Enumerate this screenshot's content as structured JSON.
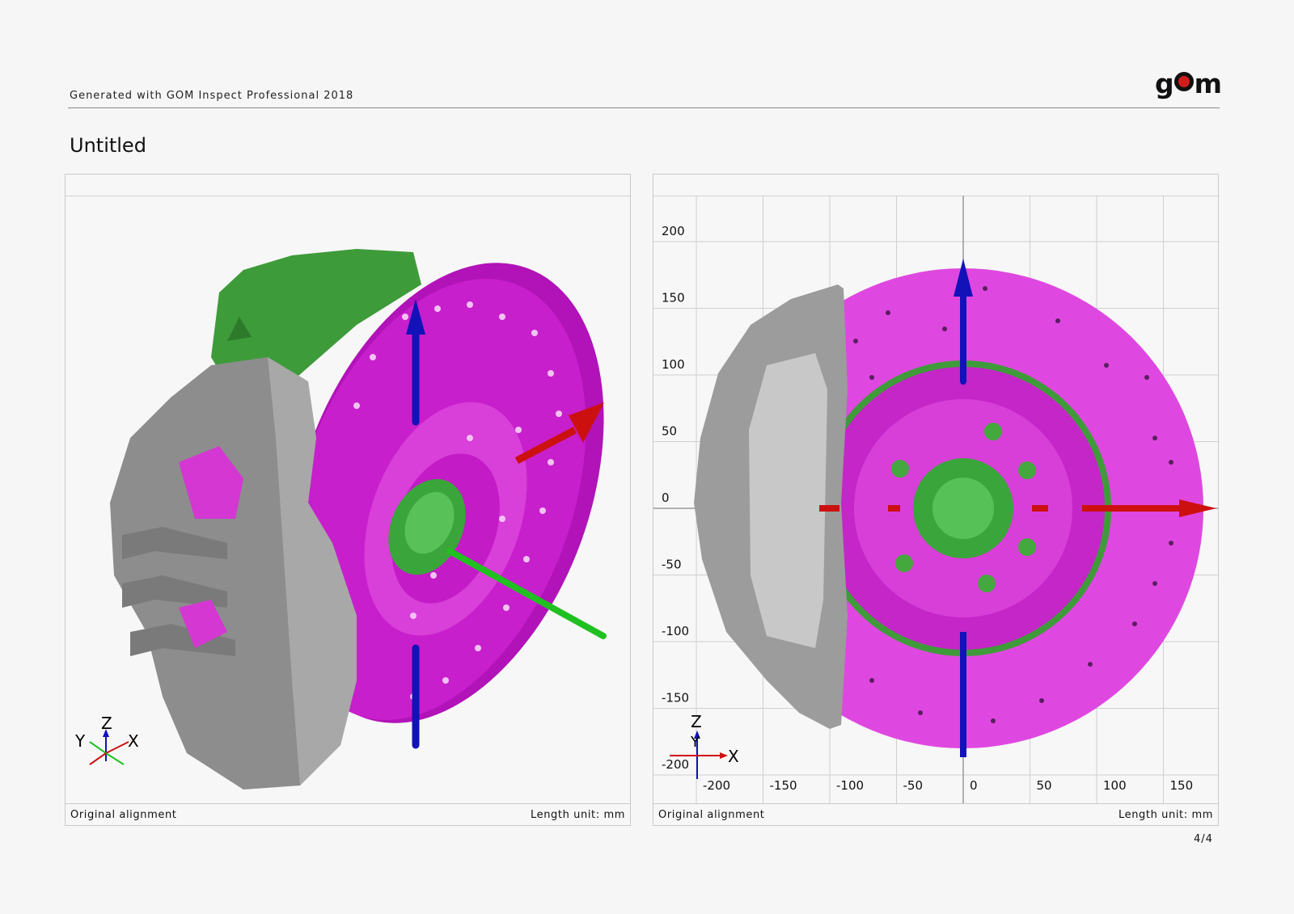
{
  "header": {
    "generated_text": "Generated with GOM Inspect Professional 2018",
    "logo_prefix": "g",
    "logo_suffix": "m"
  },
  "page": {
    "title": "Untitled",
    "page_number": "4/4"
  },
  "panels": {
    "left": {
      "footer_left": "Original alignment",
      "footer_right": "Length unit: mm",
      "axis_triad": {
        "z": "Z",
        "y": "Y",
        "x": "X"
      }
    },
    "right": {
      "footer_left": "Original alignment",
      "footer_right": "Length unit: mm",
      "axis_triad": {
        "z": "Z",
        "y": "Y",
        "x": "X"
      },
      "y_ticks": [
        "200",
        "150",
        "100",
        "50",
        "0",
        "-50",
        "-100",
        "-150",
        "-200"
      ],
      "x_ticks": [
        "-200",
        "-150",
        "-100",
        "-50",
        "0",
        "50",
        "100",
        "150"
      ]
    }
  },
  "colors": {
    "disc": "#c21ec8",
    "disc_light": "#e94ae6",
    "bracket_green": "#3e9b3a",
    "caliper_gray": "#9a9a9a",
    "axis_red": "#d01010",
    "axis_blue": "#1010c8",
    "axis_green": "#20c020"
  }
}
